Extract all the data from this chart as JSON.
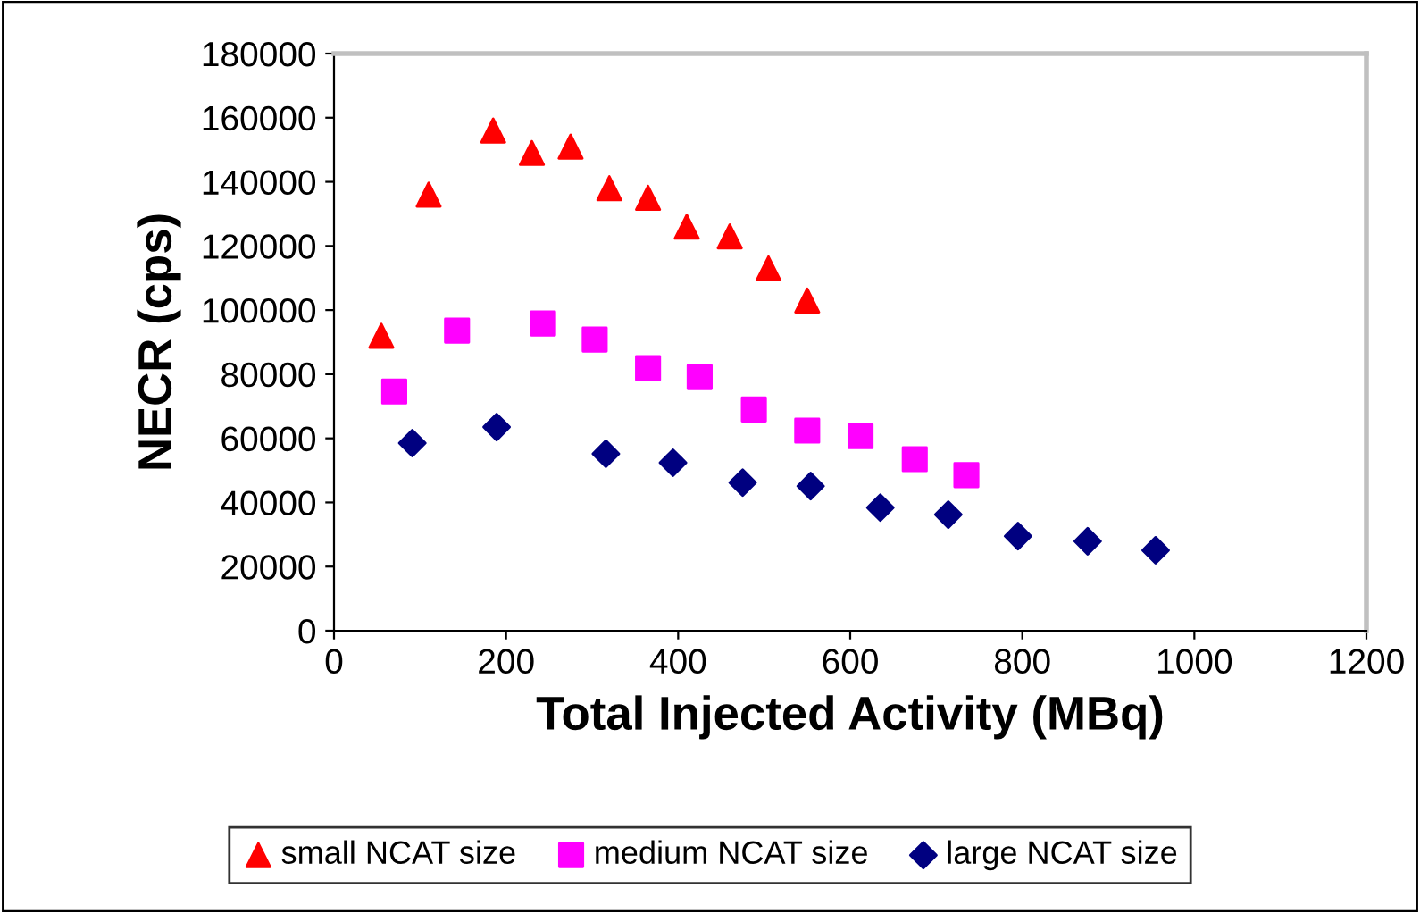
{
  "chart_data": {
    "type": "scatter",
    "xlabel": "Total Injected Activity (MBq)",
    "ylabel": "NECR (cps)",
    "xlim": [
      0,
      1200
    ],
    "xticks": [
      0,
      200,
      400,
      600,
      800,
      1000,
      1200
    ],
    "ylim": [
      0,
      180000
    ],
    "yticks": [
      0,
      20000,
      40000,
      60000,
      80000,
      100000,
      120000,
      140000,
      160000,
      180000
    ],
    "grid": false,
    "legend": "bottom",
    "series": [
      {
        "name": "small NCAT size",
        "color": "#ff0000",
        "marker": "triangle",
        "x": [
          55,
          110,
          185,
          230,
          275,
          320,
          365,
          410,
          460,
          505,
          550
        ],
        "values": [
          92000,
          136000,
          156000,
          149000,
          151000,
          138000,
          135000,
          126000,
          123000,
          113000,
          103000
        ]
      },
      {
        "name": "medium NCAT size",
        "color": "#ff00ff",
        "marker": "square",
        "x": [
          70,
          143,
          243,
          303,
          365,
          425,
          488,
          550,
          612,
          675,
          735
        ],
        "values": [
          74600,
          93600,
          95800,
          90800,
          81900,
          79100,
          69000,
          62400,
          60700,
          53500,
          48500
        ]
      },
      {
        "name": "large NCAT size",
        "color": "#000080",
        "marker": "diamond",
        "x": [
          91,
          189,
          316,
          394,
          475,
          554,
          635,
          714,
          795,
          876,
          955
        ],
        "values": [
          58500,
          63500,
          55200,
          52400,
          46200,
          45100,
          38400,
          36200,
          29500,
          27900,
          25100
        ]
      }
    ]
  }
}
